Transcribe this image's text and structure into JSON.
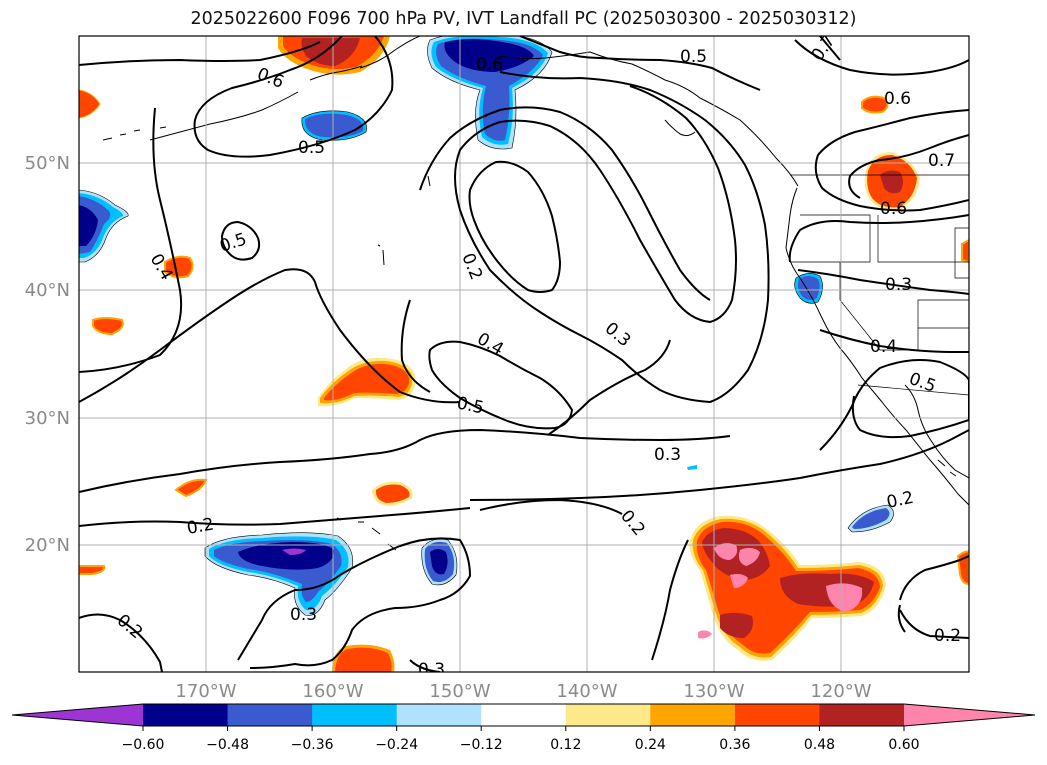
{
  "figure": {
    "title": "2025022600 F096 700 hPa PV, IVT Landfall PC (2025030300 - 2025030312)"
  },
  "map": {
    "region": "North Pacific / US West Coast",
    "projection": "cylindrical equidistant",
    "lon_range_deg": [
      -180,
      -110
    ],
    "lat_range_deg": [
      10,
      60
    ],
    "gridlines": true,
    "lat_labels": [
      "50°N",
      "40°N",
      "30°N",
      "20°N"
    ],
    "lon_labels": [
      "170°W",
      "160°W",
      "150°W",
      "140°W",
      "130°W",
      "120°W"
    ]
  },
  "contours": {
    "variable": "700 hPa PV",
    "color": "#000000",
    "labels": [
      "0.6",
      "0.5",
      "0.5",
      "0.6",
      "0.7",
      "0.6",
      "0.7",
      "0.6",
      "0.5",
      "0.4",
      "0.2",
      "0.3",
      "0.3",
      "0.4",
      "0.4",
      "0.5",
      "0.5",
      "0.3",
      "0.2",
      "0.2",
      "0.2",
      "0.3",
      "0.3",
      "0.2",
      "0.2"
    ]
  },
  "colorbar": {
    "orientation": "horizontal",
    "extend": "both",
    "tick_labels": [
      "−0.60",
      "−0.48",
      "−0.36",
      "−0.24",
      "−0.12",
      "0.12",
      "0.24",
      "0.36",
      "0.48",
      "0.60"
    ],
    "colors": [
      "#9c35d4",
      "#00008b",
      "#3a5bd0",
      "#00bfff",
      "#b0e2ff",
      "#ffffff",
      "#fde98a",
      "#ffa500",
      "#ff4500",
      "#b22222",
      "#ff85ad"
    ]
  }
}
